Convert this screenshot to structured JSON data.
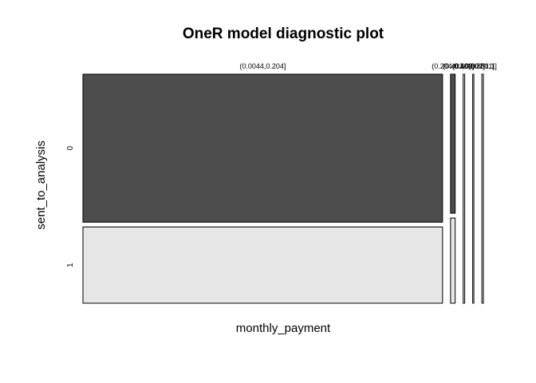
{
  "chart_data": {
    "type": "mosaic",
    "title": "OneR model diagnostic plot",
    "xlabel": "monthly_payment",
    "ylabel": "sent_to_analysis",
    "row_levels": [
      "0",
      "1"
    ],
    "columns": [
      {
        "label": "(0.0044,0.204]",
        "width": 0.93,
        "proportions": [
          0.66,
          0.34
        ]
      },
      {
        "label": "(0.204,0.403]",
        "width": 0.012,
        "proportions": [
          0.62,
          0.38
        ]
      },
      {
        "label": "(0.403,0.602]",
        "width": 0.004,
        "proportions": [
          0.0,
          1.0
        ]
      },
      {
        "label": "(0.602,0.801]",
        "width": 0.003,
        "proportions": [
          0.0,
          1.0
        ]
      },
      {
        "label": "(0.801,1]",
        "width": 0.004,
        "proportions": [
          0.0,
          1.0
        ]
      }
    ],
    "colors": {
      "row_0": "#4d4d4d",
      "row_1": "#e6e6e6",
      "border": "#000000"
    }
  }
}
